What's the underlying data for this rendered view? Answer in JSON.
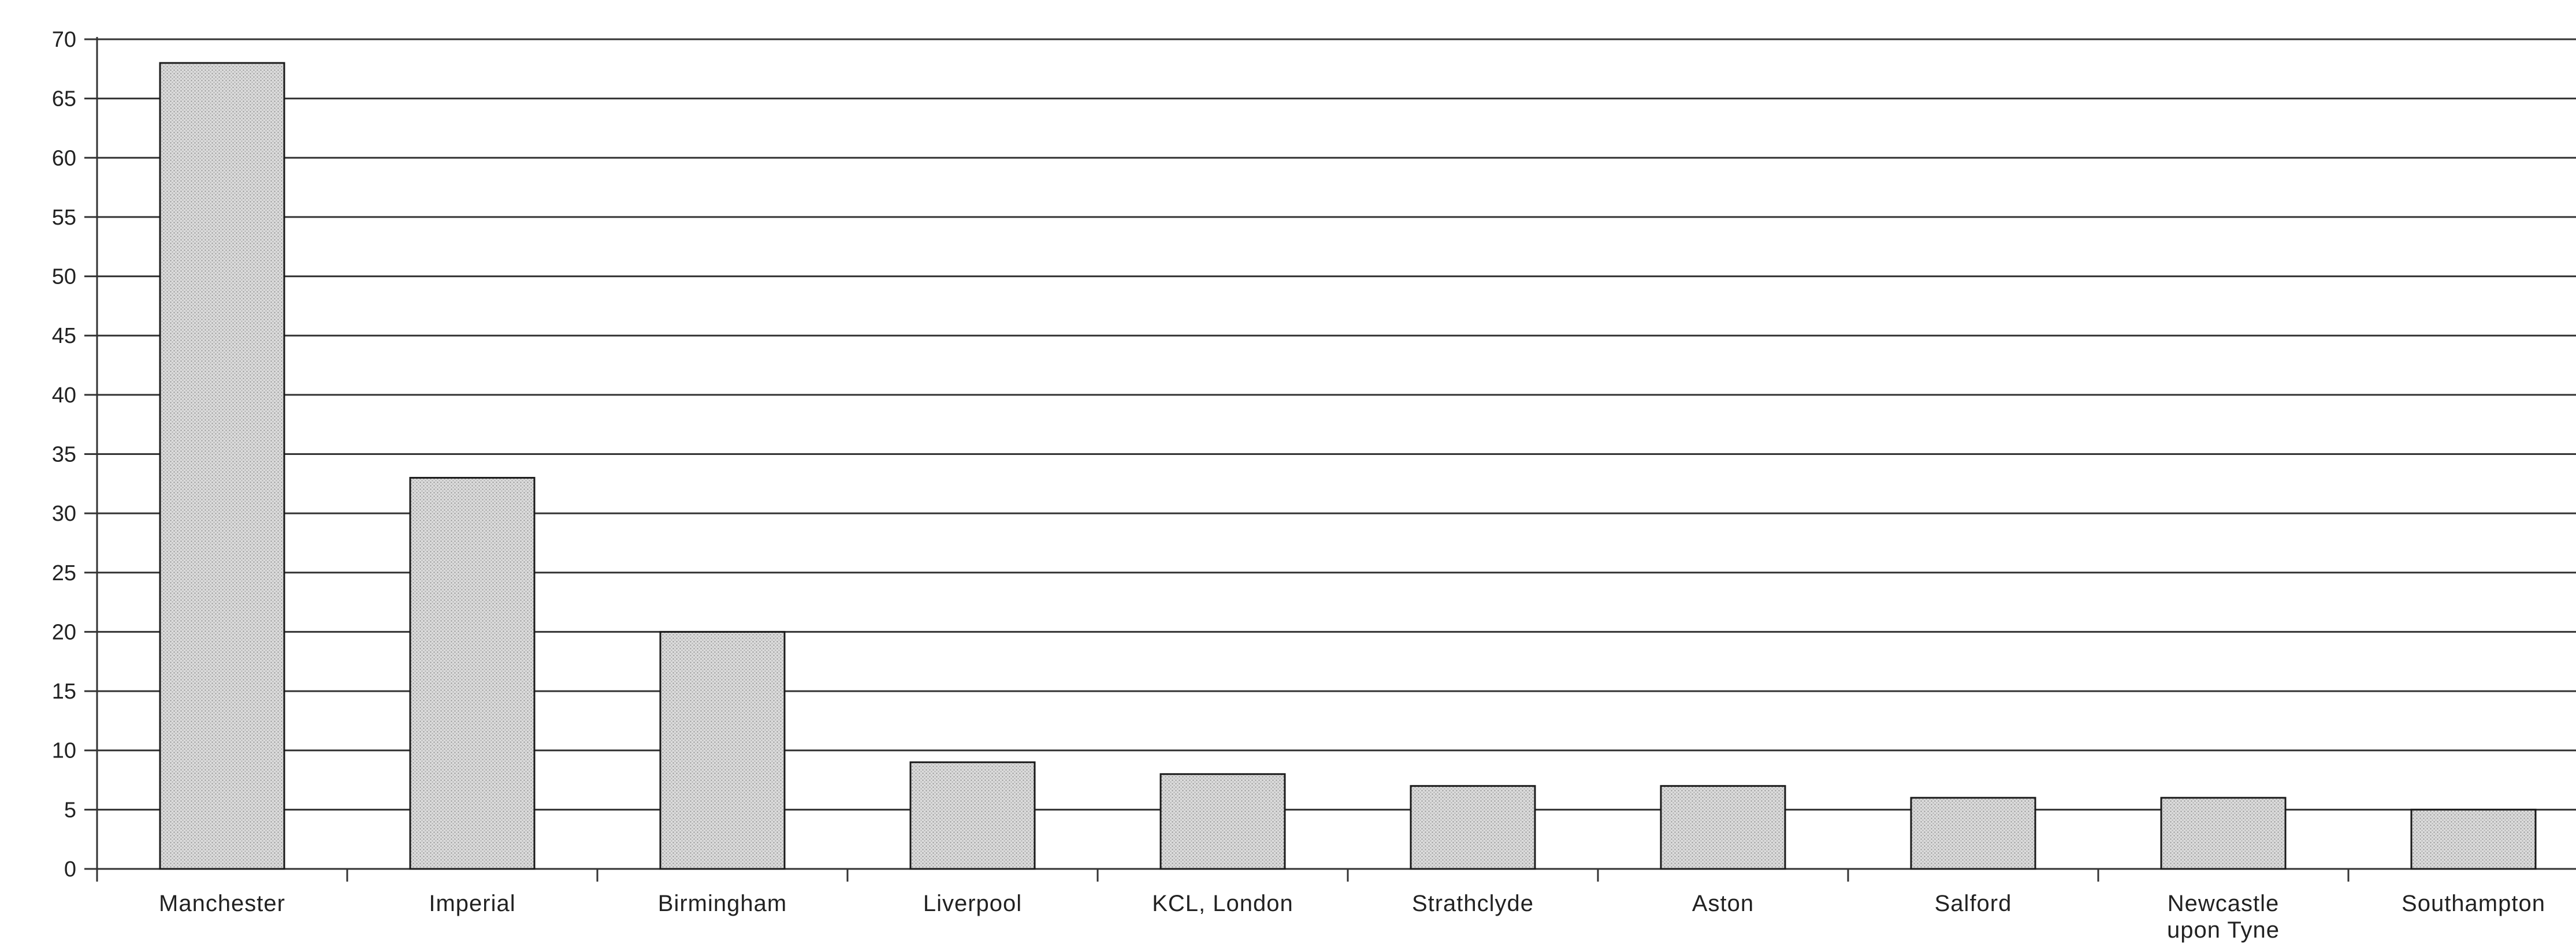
{
  "chart_data": {
    "type": "bar",
    "categories": [
      "Manchester",
      "Imperial",
      "Birmingham",
      "Liverpool",
      "KCL, London",
      "Strathclyde",
      "Aston",
      "Salford",
      "Newcastle upon Tyne",
      "Southampton"
    ],
    "category_lines": [
      [
        "Manchester"
      ],
      [
        "Imperial"
      ],
      [
        "Birmingham"
      ],
      [
        "Liverpool"
      ],
      [
        "KCL, London"
      ],
      [
        "Strathclyde"
      ],
      [
        "Aston"
      ],
      [
        "Salford"
      ],
      [
        "Newcastle",
        "upon Tyne"
      ],
      [
        "Southampton"
      ]
    ],
    "values": [
      68,
      33,
      20,
      9,
      8,
      7,
      7,
      6,
      6,
      5
    ],
    "title": "",
    "xlabel": "",
    "ylabel": "",
    "ylim": [
      0,
      70
    ],
    "yticks": [
      "0",
      "5",
      "10",
      "15",
      "20",
      "25",
      "30",
      "35",
      "40",
      "45",
      "50",
      "55",
      "60",
      "65",
      "70"
    ],
    "grid": true,
    "legend": "none",
    "bar_color": "#d4d4d4",
    "bar_edge_color": "#1a1a1a"
  }
}
